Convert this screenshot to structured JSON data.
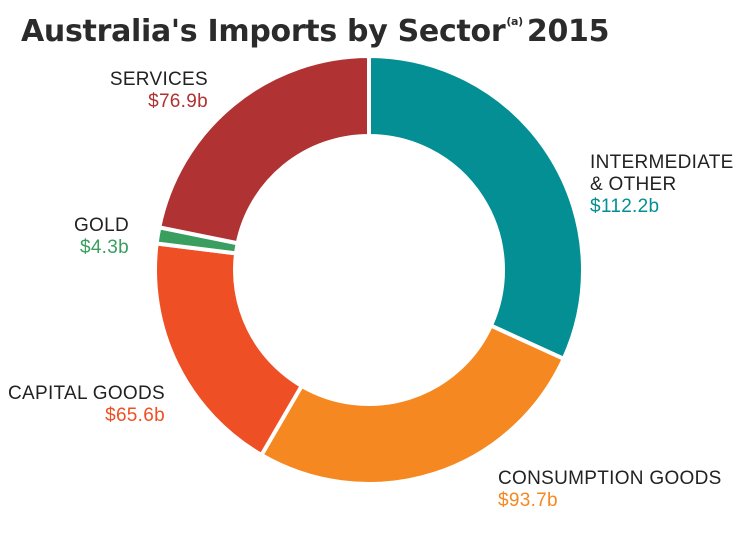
{
  "title": {
    "main": "Australia's Imports by Sector",
    "footnote": "(a)",
    "year": "2015"
  },
  "chart_data": {
    "type": "pie",
    "title": "Australia's Imports by Sector(a) 2015",
    "unit": "$ billion",
    "slices": [
      {
        "label": "INTERMEDIATE & OTHER",
        "value": 112.2,
        "display": "$112.2b",
        "color": "#038f93"
      },
      {
        "label": "CONSUMPTION GOODS",
        "value": 93.7,
        "display": "$93.7b",
        "color": "#f58820"
      },
      {
        "label": "CAPITAL GOODS",
        "value": 65.6,
        "display": "$65.6b",
        "color": "#ef4f24"
      },
      {
        "label": "GOLD",
        "value": 4.3,
        "display": "$4.3b",
        "color": "#3a9e5f"
      },
      {
        "label": "SERVICES",
        "value": 76.9,
        "display": "$76.9b",
        "color": "#b03232"
      }
    ]
  },
  "labels": {
    "intermediate": {
      "line1": "INTERMEDIATE",
      "line2": "& OTHER",
      "value": "$112.2b"
    },
    "consumption": {
      "name": "CONSUMPTION GOODS",
      "value": "$93.7b"
    },
    "capital": {
      "name": "CAPITAL GOODS",
      "value": "$65.6b"
    },
    "gold": {
      "name": "GOLD",
      "value": "$4.3b"
    },
    "services": {
      "name": "SERVICES",
      "value": "$76.9b"
    }
  }
}
